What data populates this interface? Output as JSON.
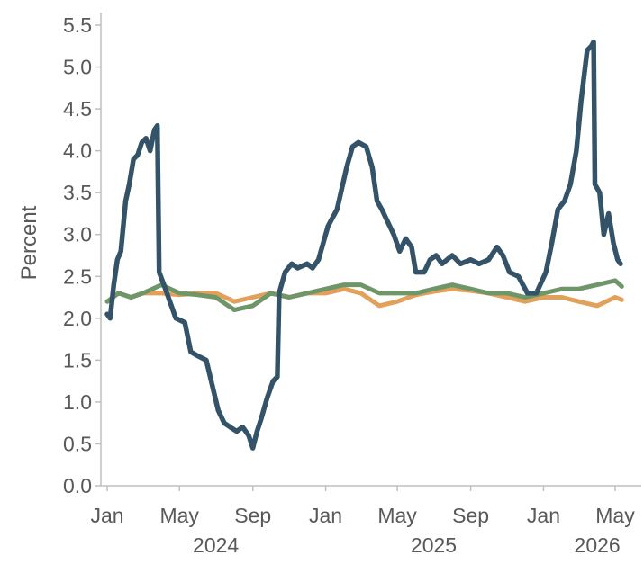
{
  "chart_data": {
    "type": "line",
    "title": "",
    "xlabel": "",
    "ylabel": "Percent",
    "ylim": [
      0.0,
      5.5
    ],
    "y_ticks": [
      "0.0",
      "0.5",
      "1.0",
      "1.5",
      "2.0",
      "2.5",
      "3.0",
      "3.5",
      "4.0",
      "4.5",
      "5.0",
      "5.5"
    ],
    "x_tick_labels": [
      {
        "date": "2024-01-01",
        "label": "Jan"
      },
      {
        "date": "2024-05-01",
        "label": "May"
      },
      {
        "date": "2024-09-01",
        "label": "Sep"
      },
      {
        "date": "2025-01-01",
        "label": "Jan"
      },
      {
        "date": "2025-05-01",
        "label": "May"
      },
      {
        "date": "2025-09-01",
        "label": "Sep"
      },
      {
        "date": "2026-01-01",
        "label": "Jan"
      },
      {
        "date": "2026-05-01",
        "label": "May"
      }
    ],
    "year_labels": [
      {
        "date": "2024-07-01",
        "label": "2024"
      },
      {
        "date": "2025-07-01",
        "label": "2025"
      },
      {
        "date": "2026-04-01",
        "label": "2026"
      }
    ],
    "grid": false,
    "legend": "none",
    "series": [
      {
        "color": "#345369",
        "points": [
          [
            "2024-01-01",
            2.05
          ],
          [
            "2024-01-06",
            2.0
          ],
          [
            "2024-01-12",
            2.4
          ],
          [
            "2024-01-18",
            2.7
          ],
          [
            "2024-01-24",
            2.8
          ],
          [
            "2024-02-01",
            3.4
          ],
          [
            "2024-02-07",
            3.6
          ],
          [
            "2024-02-14",
            3.9
          ],
          [
            "2024-02-21",
            3.95
          ],
          [
            "2024-02-28",
            4.1
          ],
          [
            "2024-03-06",
            4.15
          ],
          [
            "2024-03-13",
            4.0
          ],
          [
            "2024-03-20",
            4.25
          ],
          [
            "2024-03-25",
            4.3
          ],
          [
            "2024-03-28",
            2.55
          ],
          [
            "2024-04-05",
            2.4
          ],
          [
            "2024-04-15",
            2.2
          ],
          [
            "2024-04-25",
            2.0
          ],
          [
            "2024-05-10",
            1.95
          ],
          [
            "2024-05-20",
            1.6
          ],
          [
            "2024-06-01",
            1.55
          ],
          [
            "2024-06-15",
            1.5
          ],
          [
            "2024-06-25",
            1.2
          ],
          [
            "2024-07-05",
            0.9
          ],
          [
            "2024-07-15",
            0.75
          ],
          [
            "2024-07-25",
            0.7
          ],
          [
            "2024-08-05",
            0.65
          ],
          [
            "2024-08-15",
            0.7
          ],
          [
            "2024-08-25",
            0.6
          ],
          [
            "2024-09-01",
            0.45
          ],
          [
            "2024-09-08",
            0.65
          ],
          [
            "2024-09-15",
            0.8
          ],
          [
            "2024-09-25",
            1.05
          ],
          [
            "2024-10-05",
            1.25
          ],
          [
            "2024-10-12",
            1.3
          ],
          [
            "2024-10-15",
            2.3
          ],
          [
            "2024-10-25",
            2.55
          ],
          [
            "2024-11-05",
            2.65
          ],
          [
            "2024-11-15",
            2.6
          ],
          [
            "2024-12-01",
            2.65
          ],
          [
            "2024-12-10",
            2.6
          ],
          [
            "2024-12-20",
            2.7
          ],
          [
            "2025-01-05",
            3.1
          ],
          [
            "2025-01-20",
            3.3
          ],
          [
            "2025-02-05",
            3.8
          ],
          [
            "2025-02-15",
            4.05
          ],
          [
            "2025-02-25",
            4.1
          ],
          [
            "2025-03-10",
            4.05
          ],
          [
            "2025-03-20",
            3.8
          ],
          [
            "2025-03-28",
            3.4
          ],
          [
            "2025-04-05",
            3.3
          ],
          [
            "2025-04-15",
            3.15
          ],
          [
            "2025-04-25",
            3.0
          ],
          [
            "2025-05-05",
            2.8
          ],
          [
            "2025-05-15",
            2.95
          ],
          [
            "2025-05-25",
            2.85
          ],
          [
            "2025-06-01",
            2.55
          ],
          [
            "2025-06-15",
            2.55
          ],
          [
            "2025-06-25",
            2.7
          ],
          [
            "2025-07-05",
            2.75
          ],
          [
            "2025-07-15",
            2.65
          ],
          [
            "2025-08-01",
            2.75
          ],
          [
            "2025-08-15",
            2.65
          ],
          [
            "2025-09-01",
            2.7
          ],
          [
            "2025-09-15",
            2.65
          ],
          [
            "2025-10-01",
            2.7
          ],
          [
            "2025-10-15",
            2.85
          ],
          [
            "2025-10-25",
            2.75
          ],
          [
            "2025-11-05",
            2.55
          ],
          [
            "2025-11-20",
            2.5
          ],
          [
            "2025-12-05",
            2.3
          ],
          [
            "2025-12-20",
            2.3
          ],
          [
            "2026-01-05",
            2.55
          ],
          [
            "2026-01-15",
            2.9
          ],
          [
            "2026-01-25",
            3.3
          ],
          [
            "2026-02-05",
            3.4
          ],
          [
            "2026-02-15",
            3.6
          ],
          [
            "2026-02-25",
            4.0
          ],
          [
            "2026-03-05",
            4.6
          ],
          [
            "2026-03-15",
            5.2
          ],
          [
            "2026-03-22",
            5.25
          ],
          [
            "2026-03-26",
            5.3
          ],
          [
            "2026-03-28",
            3.6
          ],
          [
            "2026-04-05",
            3.5
          ],
          [
            "2026-04-12",
            3.0
          ],
          [
            "2026-04-20",
            3.25
          ],
          [
            "2026-04-28",
            2.9
          ],
          [
            "2026-05-05",
            2.7
          ],
          [
            "2026-05-10",
            2.65
          ]
        ]
      },
      {
        "color": "#E2A05A",
        "points": [
          [
            "2024-01-01",
            2.2
          ],
          [
            "2024-01-20",
            2.3
          ],
          [
            "2024-02-10",
            2.25
          ],
          [
            "2024-03-01",
            2.3
          ],
          [
            "2024-04-01",
            2.3
          ],
          [
            "2024-05-01",
            2.28
          ],
          [
            "2024-06-01",
            2.3
          ],
          [
            "2024-07-01",
            2.3
          ],
          [
            "2024-08-01",
            2.2
          ],
          [
            "2024-09-01",
            2.25
          ],
          [
            "2024-10-01",
            2.3
          ],
          [
            "2024-11-01",
            2.25
          ],
          [
            "2024-12-01",
            2.3
          ],
          [
            "2025-01-01",
            2.3
          ],
          [
            "2025-02-01",
            2.35
          ],
          [
            "2025-03-01",
            2.3
          ],
          [
            "2025-04-01",
            2.15
          ],
          [
            "2025-05-01",
            2.2
          ],
          [
            "2025-06-01",
            2.28
          ],
          [
            "2025-07-01",
            2.32
          ],
          [
            "2025-08-01",
            2.35
          ],
          [
            "2025-09-01",
            2.33
          ],
          [
            "2025-10-01",
            2.3
          ],
          [
            "2025-11-01",
            2.25
          ],
          [
            "2025-12-01",
            2.2
          ],
          [
            "2026-01-01",
            2.25
          ],
          [
            "2026-02-01",
            2.25
          ],
          [
            "2026-03-01",
            2.2
          ],
          [
            "2026-04-01",
            2.15
          ],
          [
            "2026-05-01",
            2.25
          ],
          [
            "2026-05-12",
            2.22
          ]
        ]
      },
      {
        "color": "#6F9669",
        "points": [
          [
            "2024-01-01",
            2.2
          ],
          [
            "2024-01-20",
            2.3
          ],
          [
            "2024-02-10",
            2.25
          ],
          [
            "2024-03-01",
            2.3
          ],
          [
            "2024-04-01",
            2.4
          ],
          [
            "2024-05-01",
            2.3
          ],
          [
            "2024-06-01",
            2.28
          ],
          [
            "2024-07-01",
            2.25
          ],
          [
            "2024-08-01",
            2.1
          ],
          [
            "2024-09-01",
            2.15
          ],
          [
            "2024-10-01",
            2.3
          ],
          [
            "2024-11-01",
            2.25
          ],
          [
            "2024-12-01",
            2.3
          ],
          [
            "2025-01-01",
            2.35
          ],
          [
            "2025-02-01",
            2.4
          ],
          [
            "2025-03-01",
            2.4
          ],
          [
            "2025-04-01",
            2.3
          ],
          [
            "2025-05-01",
            2.3
          ],
          [
            "2025-06-01",
            2.3
          ],
          [
            "2025-07-01",
            2.35
          ],
          [
            "2025-08-01",
            2.4
          ],
          [
            "2025-09-01",
            2.35
          ],
          [
            "2025-10-01",
            2.3
          ],
          [
            "2025-11-01",
            2.3
          ],
          [
            "2025-12-01",
            2.25
          ],
          [
            "2026-01-01",
            2.3
          ],
          [
            "2026-02-01",
            2.35
          ],
          [
            "2026-03-01",
            2.35
          ],
          [
            "2026-04-01",
            2.4
          ],
          [
            "2026-05-01",
            2.45
          ],
          [
            "2026-05-12",
            2.38
          ]
        ]
      }
    ]
  }
}
